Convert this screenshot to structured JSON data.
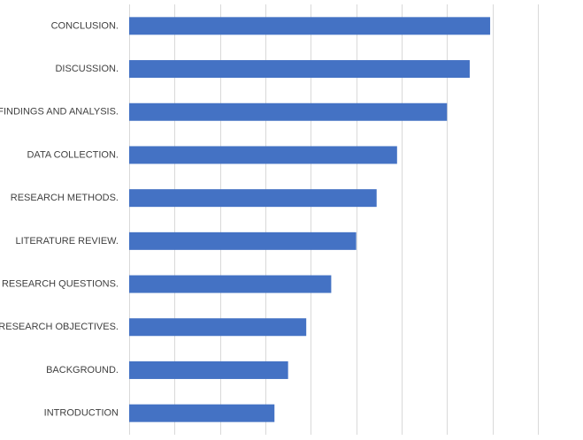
{
  "chart_data": {
    "type": "barh",
    "categories": [
      "INTRODUCTION",
      "BACKGROUND.",
      "RESEARCH OBJECTIVES.",
      "RESEARCH QUESTIONS.",
      "LITERATURE REVIEW.",
      "RESEARCH METHODS.",
      "DATA COLLECTION.",
      "FINDINGS AND ANALYSIS.",
      "DISCUSSION.",
      "CONCLUSION."
    ],
    "values": [
      3.2,
      3.5,
      3.9,
      4.45,
      5.0,
      5.45,
      5.9,
      7.0,
      7.5,
      7.95
    ],
    "color": "#4472c4",
    "xlim": [
      0,
      9.8
    ],
    "xticks": [
      0,
      1,
      2,
      3,
      4,
      5,
      6,
      7,
      8,
      9
    ],
    "grid": true
  }
}
